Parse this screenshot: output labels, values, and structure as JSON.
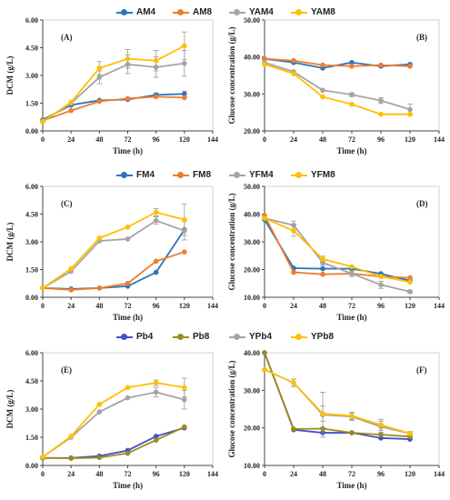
{
  "colors": {
    "blue": "#2e75b6",
    "orange": "#ed7d31",
    "gray": "#a5a5a5",
    "yellow": "#ffc000",
    "darkblue": "#4350c8",
    "olive": "#9c8a1e"
  },
  "legends": [
    {
      "items": [
        {
          "label": "AM4",
          "color": "#2e75b6"
        },
        {
          "label": "AM8",
          "color": "#ed7d31"
        },
        {
          "label": "YAM4",
          "color": "#a5a5a5"
        },
        {
          "label": "YAM8",
          "color": "#ffc000"
        }
      ]
    },
    {
      "items": [
        {
          "label": "FM4",
          "color": "#2e75b6"
        },
        {
          "label": "FM8",
          "color": "#ed7d31"
        },
        {
          "label": "YFM4",
          "color": "#a5a5a5"
        },
        {
          "label": "YFM8",
          "color": "#ffc000"
        }
      ]
    },
    {
      "items": [
        {
          "label": "Pb4",
          "color": "#4350c8"
        },
        {
          "label": "Pb8",
          "color": "#9c8a1e"
        },
        {
          "label": "YPb4",
          "color": "#a5a5a5"
        },
        {
          "label": "YPb8",
          "color": "#ffc000"
        }
      ]
    }
  ],
  "chart_data": [
    {
      "id": "A",
      "type": "line",
      "panel_label": "(A)",
      "xlabel": "Time (h)",
      "ylabel": "DCM (g/L)",
      "x": [
        0,
        24,
        48,
        72,
        96,
        120
      ],
      "xticks": [
        "0",
        "24",
        "48",
        "72",
        "96",
        "120",
        "144"
      ],
      "xlim": [
        0,
        144
      ],
      "yticks": [
        "0.00",
        "1.50",
        "3.00",
        "4.50",
        "6.00"
      ],
      "ylim": [
        0,
        6
      ],
      "series": [
        {
          "name": "AM4",
          "color": "#2e75b6",
          "values": [
            0.6,
            1.4,
            1.65,
            1.7,
            1.95,
            2.0
          ],
          "errors": [
            0,
            0,
            0,
            0,
            0.1,
            0.15
          ]
        },
        {
          "name": "AM8",
          "color": "#ed7d31",
          "values": [
            0.55,
            1.1,
            1.6,
            1.75,
            1.85,
            1.8
          ],
          "errors": [
            0,
            0,
            0,
            0,
            0,
            0
          ]
        },
        {
          "name": "YAM4",
          "color": "#a5a5a5",
          "values": [
            0.5,
            1.5,
            2.9,
            3.6,
            3.45,
            3.65
          ],
          "errors": [
            0,
            0,
            0.35,
            0.5,
            0.55,
            0.7
          ]
        },
        {
          "name": "YAM8",
          "color": "#ffc000",
          "values": [
            0.5,
            1.55,
            3.4,
            3.9,
            3.8,
            4.6
          ],
          "errors": [
            0,
            0,
            0.35,
            0.5,
            0.55,
            0.75
          ]
        }
      ]
    },
    {
      "id": "B",
      "type": "line",
      "panel_label": "(B)",
      "xlabel": "Time (h)",
      "ylabel": "Glucose concentration  (g/L)",
      "x": [
        0,
        24,
        48,
        72,
        96,
        120
      ],
      "xticks": [
        "0",
        "24",
        "48",
        "72",
        "96",
        "120",
        "144"
      ],
      "xlim": [
        0,
        144
      ],
      "yticks": [
        "20.00",
        "30.00",
        "40.00",
        "50.00"
      ],
      "ylim": [
        20,
        50
      ],
      "series": [
        {
          "name": "AM4",
          "color": "#2e75b6",
          "values": [
            39.5,
            38.5,
            37.0,
            38.5,
            37.5,
            38.0
          ],
          "errors": [
            0,
            0,
            0,
            0,
            0,
            0
          ]
        },
        {
          "name": "AM8",
          "color": "#ed7d31",
          "values": [
            39.5,
            39.0,
            37.8,
            37.5,
            37.8,
            37.5
          ],
          "errors": [
            0,
            0,
            0,
            0,
            0,
            0
          ]
        },
        {
          "name": "YAM4",
          "color": "#a5a5a5",
          "values": [
            38.5,
            36.0,
            31.0,
            29.8,
            28.2,
            25.8
          ],
          "errors": [
            0,
            0,
            0,
            0.5,
            0.8,
            1.5
          ]
        },
        {
          "name": "YAM8",
          "color": "#ffc000",
          "values": [
            38.0,
            35.5,
            29.2,
            27.2,
            24.5,
            24.5
          ],
          "errors": [
            0,
            0,
            0,
            0,
            0,
            0
          ]
        }
      ]
    },
    {
      "id": "C",
      "type": "line",
      "panel_label": "(C)",
      "xlabel": "Time (h)",
      "ylabel": "DCM (g/L)",
      "x": [
        0,
        24,
        48,
        72,
        96,
        120
      ],
      "xticks": [
        "0",
        "24",
        "48",
        "72",
        "96",
        "120",
        "144"
      ],
      "xlim": [
        0,
        144
      ],
      "yticks": [
        "0.00",
        "1.50",
        "3.00",
        "4.50",
        "6.00"
      ],
      "ylim": [
        0,
        6
      ],
      "series": [
        {
          "name": "FM4",
          "color": "#2e75b6",
          "values": [
            0.5,
            0.45,
            0.5,
            0.6,
            1.35,
            3.65
          ],
          "errors": [
            0,
            0,
            0,
            0,
            0,
            0
          ]
        },
        {
          "name": "FM8",
          "color": "#ed7d31",
          "values": [
            0.5,
            0.4,
            0.5,
            0.75,
            1.95,
            2.45
          ],
          "errors": [
            0,
            0,
            0,
            0,
            0,
            0
          ]
        },
        {
          "name": "YFM4",
          "color": "#a5a5a5",
          "values": [
            0.5,
            1.4,
            3.05,
            3.15,
            4.15,
            3.6
          ],
          "errors": [
            0,
            0,
            0,
            0,
            0.2,
            0.5
          ]
        },
        {
          "name": "YFM8",
          "color": "#ffc000",
          "values": [
            0.5,
            1.55,
            3.2,
            3.8,
            4.6,
            4.2
          ],
          "errors": [
            0,
            0,
            0,
            0,
            0.2,
            0.85
          ]
        }
      ]
    },
    {
      "id": "D",
      "type": "line",
      "panel_label": "(D)",
      "xlabel": "Time (h)",
      "ylabel": "Glucose concentration  (g/L)",
      "x": [
        0,
        24,
        48,
        72,
        96,
        120
      ],
      "xticks": [
        "0",
        "24",
        "48",
        "72",
        "96",
        "120",
        "144"
      ],
      "xlim": [
        0,
        144
      ],
      "yticks": [
        "10.00",
        "20.00",
        "30.00",
        "40.00",
        "50.00"
      ],
      "ylim": [
        10,
        50
      ],
      "series": [
        {
          "name": "FM4",
          "color": "#2e75b6",
          "values": [
            38.0,
            20.5,
            20.3,
            20.3,
            18.5,
            16.0
          ],
          "errors": [
            0,
            0,
            0,
            0,
            0,
            0
          ]
        },
        {
          "name": "FM8",
          "color": "#ed7d31",
          "values": [
            39.5,
            19.0,
            18.3,
            18.5,
            17.5,
            17.0
          ],
          "errors": [
            0,
            0,
            0,
            0,
            0,
            0
          ]
        },
        {
          "name": "YFM4",
          "color": "#a5a5a5",
          "values": [
            38.5,
            36.0,
            22.5,
            18.5,
            14.5,
            12.0
          ],
          "errors": [
            0,
            1.5,
            1.0,
            1.0,
            1.3,
            0.5
          ]
        },
        {
          "name": "YFM8",
          "color": "#ffc000",
          "values": [
            38.5,
            34.0,
            23.8,
            21.0,
            17.5,
            15.5
          ],
          "errors": [
            0,
            2.0,
            1.0,
            0,
            0,
            0
          ]
        }
      ]
    },
    {
      "id": "E",
      "type": "line",
      "panel_label": "(E)",
      "xlabel": "Time (h)",
      "ylabel": "DCM (g/L)",
      "x": [
        0,
        24,
        48,
        72,
        96,
        120
      ],
      "xticks": [
        "0",
        "24",
        "48",
        "72",
        "96",
        "120",
        "144"
      ],
      "xlim": [
        0,
        144
      ],
      "yticks": [
        "0.00",
        "1.50",
        "3.00",
        "4.50",
        "6.00"
      ],
      "ylim": [
        0,
        6
      ],
      "series": [
        {
          "name": "Pb4",
          "color": "#4350c8",
          "values": [
            0.4,
            0.4,
            0.5,
            0.8,
            1.55,
            2.0
          ],
          "errors": [
            0,
            0,
            0,
            0,
            0,
            0
          ]
        },
        {
          "name": "Pb8",
          "color": "#9c8a1e",
          "values": [
            0.4,
            0.38,
            0.42,
            0.65,
            1.35,
            2.05
          ],
          "errors": [
            0,
            0,
            0,
            0,
            0,
            0
          ]
        },
        {
          "name": "YPb4",
          "color": "#a5a5a5",
          "values": [
            0.45,
            1.5,
            2.85,
            3.6,
            3.9,
            3.5
          ],
          "errors": [
            0,
            0,
            0,
            0,
            0.25,
            0.5
          ]
        },
        {
          "name": "YPb8",
          "color": "#ffc000",
          "values": [
            0.45,
            1.55,
            3.25,
            4.15,
            4.4,
            4.15
          ],
          "errors": [
            0,
            0,
            0,
            0,
            0.15,
            0.5
          ]
        }
      ]
    },
    {
      "id": "F",
      "type": "line",
      "panel_label": "(F)",
      "xlabel": "Time (h)",
      "ylabel": "Glucose concentration  (g/L)",
      "x": [
        0,
        24,
        48,
        72,
        96,
        120
      ],
      "xticks": [
        "0",
        "24",
        "48",
        "72",
        "96",
        "120",
        "144"
      ],
      "xlim": [
        0,
        144
      ],
      "yticks": [
        "10.00",
        "20.00",
        "30.00",
        "40.00"
      ],
      "ylim": [
        10,
        40
      ],
      "series": [
        {
          "name": "Pb4",
          "color": "#4350c8",
          "values": [
            40.0,
            19.5,
            18.7,
            18.7,
            17.3,
            17.0
          ],
          "errors": [
            0,
            0,
            0,
            0,
            0,
            0
          ]
        },
        {
          "name": "Pb8",
          "color": "#9c8a1e",
          "values": [
            40.0,
            19.7,
            19.8,
            18.7,
            18.2,
            17.7
          ],
          "errors": [
            0,
            0,
            0,
            0,
            0,
            0
          ]
        },
        {
          "name": "YPb4",
          "color": "#a5a5a5",
          "values": [
            35.5,
            32.0,
            23.5,
            23.0,
            20.3,
            18.5
          ],
          "errors": [
            0,
            1.0,
            6.0,
            1.0,
            1.5,
            0.5
          ]
        },
        {
          "name": "YPb8",
          "color": "#ffc000",
          "values": [
            35.5,
            32.0,
            23.8,
            23.2,
            20.8,
            18.5
          ],
          "errors": [
            0,
            1.0,
            2.0,
            1.0,
            1.5,
            0.5
          ]
        }
      ]
    }
  ]
}
